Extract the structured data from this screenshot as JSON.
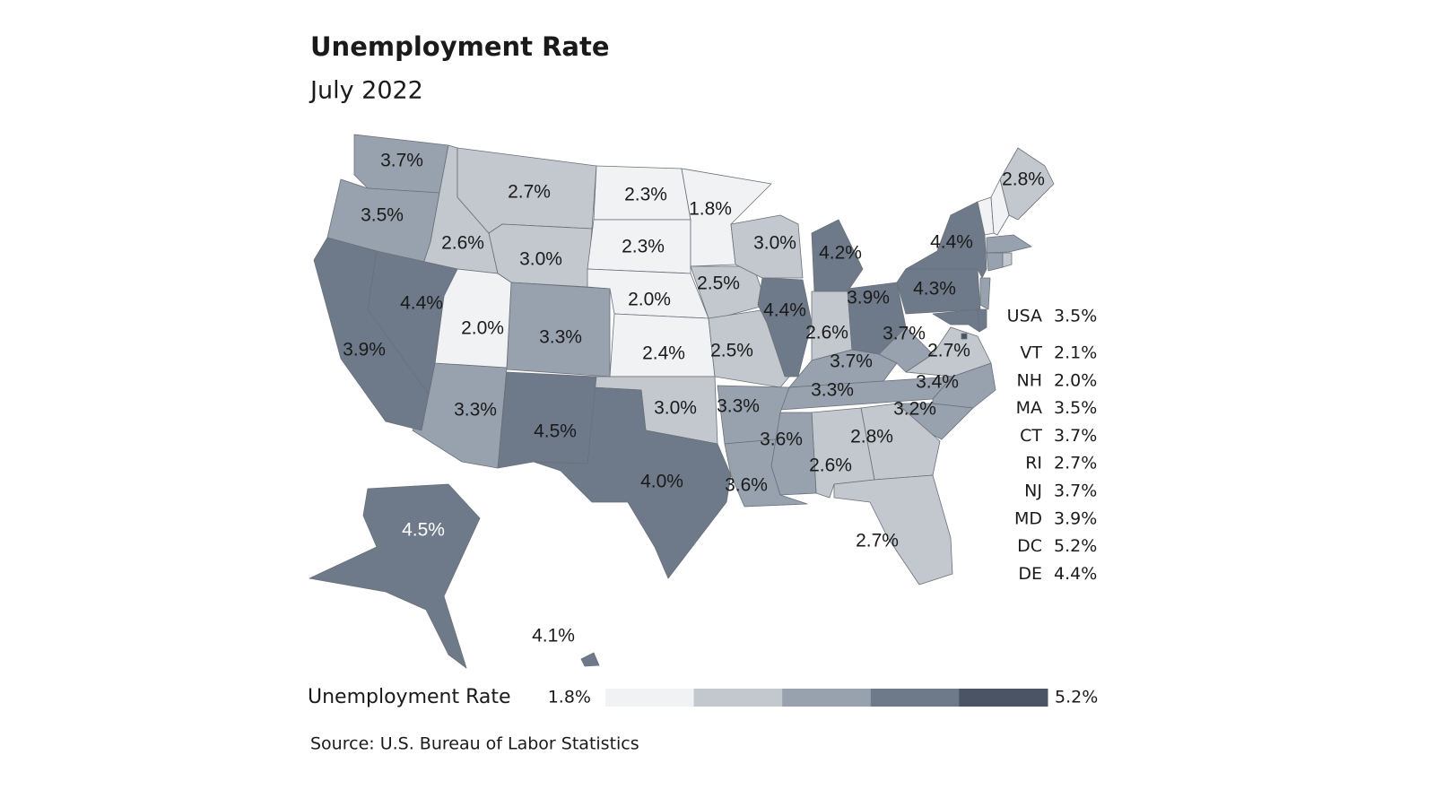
{
  "chart_data": {
    "type": "choropleth",
    "title": "Unemployment Rate",
    "subtitle": "July 2022",
    "values": [
      3.7,
      3.5,
      2.6,
      2.7,
      3.0,
      2.3,
      2.3,
      2.0,
      2.4,
      1.8,
      2.5,
      2.5,
      3.0,
      4.4,
      4.2,
      2.6,
      3.9,
      3.7,
      3.3,
      3.7,
      4.3,
      4.4,
      2.7,
      3.4,
      3.2,
      2.8,
      2.6,
      3.6,
      3.3,
      3.6,
      3.0,
      4.0,
      4.5,
      3.3,
      3.3,
      2.0,
      4.4,
      3.9,
      2.7,
      2.8,
      4.5,
      4.1
    ],
    "value_labels": [
      "3.7%",
      "3.5%",
      "2.6%",
      "2.7%",
      "3.0%",
      "2.3%",
      "2.3%",
      "2.0%",
      "2.4%",
      "1.8%",
      "2.5%",
      "2.5%",
      "3.0%",
      "4.4%",
      "4.2%",
      "2.6%",
      "3.9%",
      "3.7%",
      "3.3%",
      "3.7%",
      "4.3%",
      "4.4%",
      "2.7%",
      "3.4%",
      "3.2%",
      "2.8%",
      "2.6%",
      "3.6%",
      "3.3%",
      "3.6%",
      "3.0%",
      "4.0%",
      "4.5%",
      "3.3%",
      "3.3%",
      "2.0%",
      "4.4%",
      "3.9%",
      "2.7%",
      "2.8%",
      "4.5%",
      "4.1%"
    ],
    "side_list": {
      "categories": [
        "USA",
        "VT",
        "NH",
        "MA",
        "CT",
        "RI",
        "NJ",
        "MD",
        "DC",
        "DE"
      ],
      "values": [
        3.5,
        2.1,
        2.0,
        3.5,
        3.7,
        2.7,
        3.7,
        3.9,
        5.2,
        4.4
      ],
      "value_labels": [
        "3.5%",
        "2.1%",
        "2.0%",
        "3.5%",
        "3.7%",
        "2.7%",
        "3.7%",
        "3.9%",
        "5.2%",
        "4.4%"
      ]
    },
    "legend": {
      "title": "Unemployment Rate",
      "range": [
        1.8,
        5.2
      ],
      "range_labels": [
        "1.8%",
        "5.2%"
      ],
      "colors": [
        "#f1f2f3",
        "#c3c8cf",
        "#97a2ae",
        "#6e7a89",
        "#4a5464"
      ]
    },
    "source": "Source: U.S. Bureau of Labor Statistics"
  }
}
